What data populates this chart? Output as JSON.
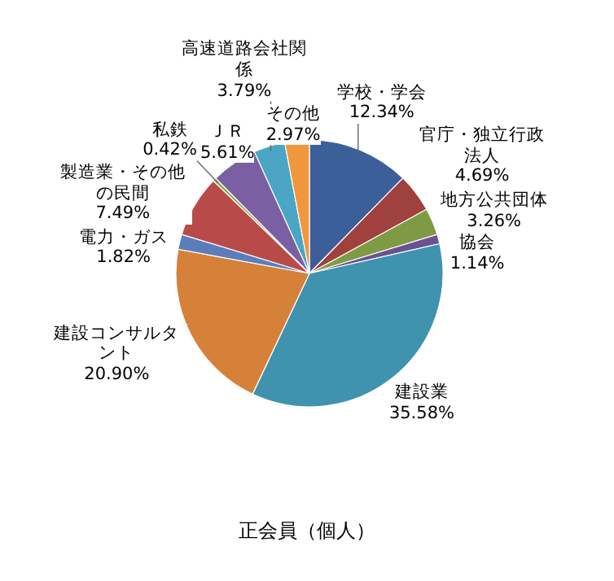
{
  "chart_data": {
    "type": "pie",
    "title": "正会員（個人）",
    "categories": [
      "学校・学会",
      "官庁・独立行政法人",
      "地方公共団体",
      "協会",
      "建設業",
      "建設コンサルタント",
      "電力・ガス",
      "製造業・その他の民間",
      "私鉄",
      "ＪＲ",
      "高速道路会社関係",
      "その他"
    ],
    "values": [
      12.34,
      4.69,
      3.26,
      1.14,
      35.58,
      20.9,
      1.82,
      7.49,
      0.42,
      5.61,
      3.79,
      2.97
    ],
    "value_labels": [
      "12.34%",
      "4.69%",
      "3.26%",
      "1.14%",
      "35.58%",
      "20.90%",
      "1.82%",
      "7.49%",
      "0.42%",
      "5.61%",
      "3.79%",
      "2.97%"
    ],
    "colors": [
      "#3c5f9a",
      "#a0413d",
      "#7e9a44",
      "#6a5290",
      "#3f93ae",
      "#d5813a",
      "#5b7dbb",
      "#b84b48",
      "#8fae54",
      "#7b5fa3",
      "#4aa6c4",
      "#f0973d"
    ]
  }
}
